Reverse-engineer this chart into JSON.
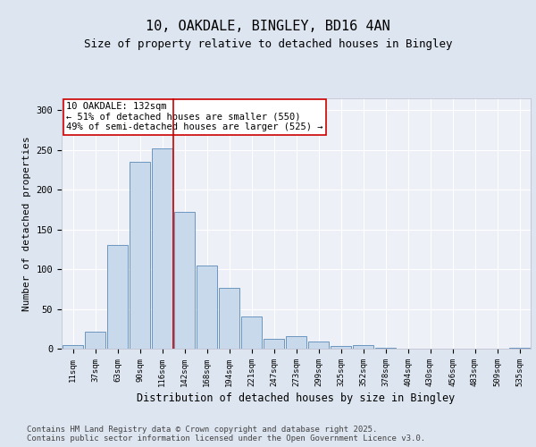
{
  "title1": "10, OAKDALE, BINGLEY, BD16 4AN",
  "title2": "Size of property relative to detached houses in Bingley",
  "xlabel": "Distribution of detached houses by size in Bingley",
  "ylabel": "Number of detached properties",
  "categories": [
    "11sqm",
    "37sqm",
    "63sqm",
    "90sqm",
    "116sqm",
    "142sqm",
    "168sqm",
    "194sqm",
    "221sqm",
    "247sqm",
    "273sqm",
    "299sqm",
    "325sqm",
    "352sqm",
    "378sqm",
    "404sqm",
    "430sqm",
    "456sqm",
    "483sqm",
    "509sqm",
    "535sqm"
  ],
  "values": [
    4,
    21,
    130,
    235,
    252,
    172,
    105,
    77,
    41,
    12,
    16,
    9,
    3,
    5,
    1,
    0,
    0,
    0,
    0,
    0,
    1
  ],
  "bar_color": "#c8d9ec",
  "bar_edge_color": "#5b8ab8",
  "vline_color": "#cc0000",
  "vline_pos": 4.5,
  "annotation_box_text": "10 OAKDALE: 132sqm\n← 51% of detached houses are smaller (550)\n49% of semi-detached houses are larger (525) →",
  "annotation_box_color": "#cc0000",
  "annotation_box_fill": "#ffffff",
  "ylim": [
    0,
    315
  ],
  "yticks": [
    0,
    50,
    100,
    150,
    200,
    250,
    300
  ],
  "background_color": "#dde5f0",
  "plot_background_color": "#edf1f7",
  "grid_color": "#ffffff",
  "footer_text": "Contains HM Land Registry data © Crown copyright and database right 2025.\nContains public sector information licensed under the Open Government Licence v3.0.",
  "title_fontsize": 11,
  "subtitle_fontsize": 9,
  "ylabel_fontsize": 8,
  "xlabel_fontsize": 8.5,
  "tick_fontsize": 6.5,
  "ytick_fontsize": 7.5,
  "annotation_fontsize": 7.5,
  "footer_fontsize": 6.5
}
